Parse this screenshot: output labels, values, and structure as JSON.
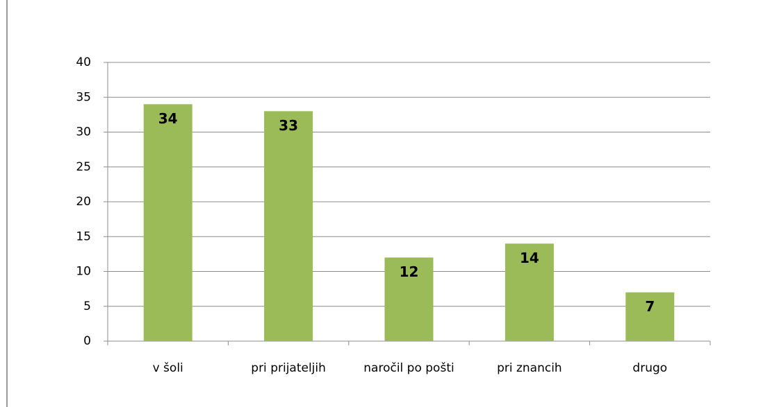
{
  "chart_data": {
    "type": "bar",
    "categories": [
      "v šoli",
      "pri prijateljih",
      "naročil po pošti",
      "pri znancih",
      "drugo"
    ],
    "values": [
      34,
      33,
      12,
      14,
      7
    ],
    "color": "#9bbb59",
    "ylim": [
      0,
      40
    ],
    "yticks": [
      0,
      5,
      10,
      15,
      20,
      25,
      30,
      35,
      40
    ],
    "grid": true
  }
}
